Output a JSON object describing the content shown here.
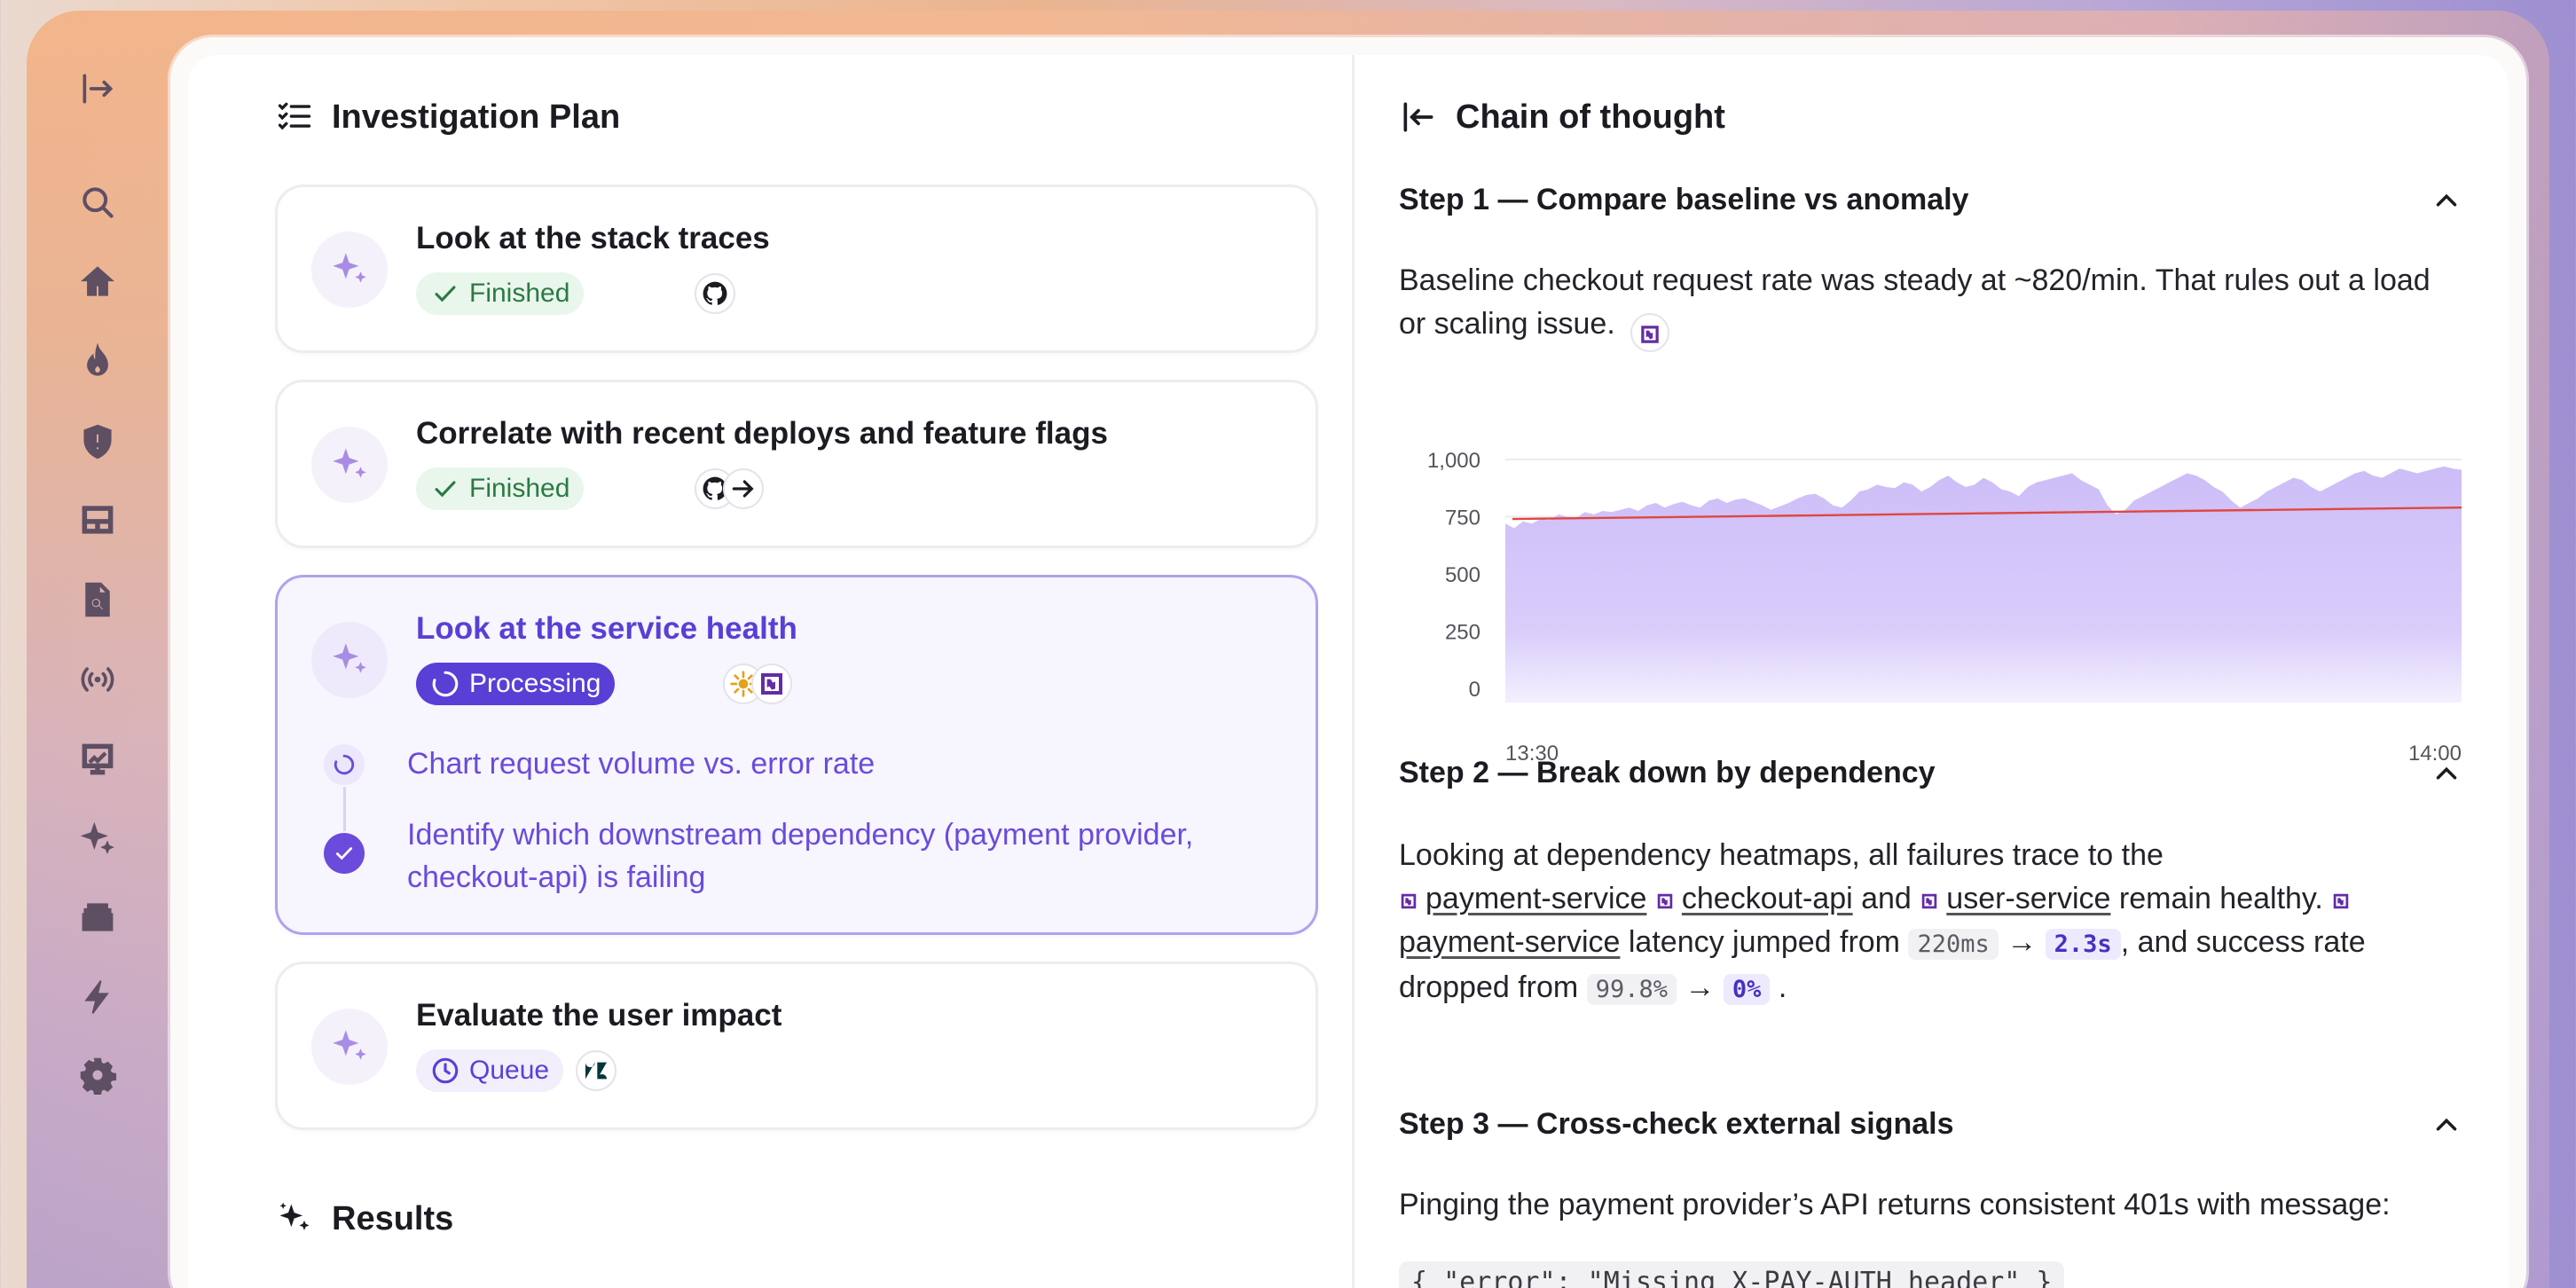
{
  "plan": {
    "title": "Investigation Plan",
    "tasks": [
      {
        "title": "Look at the stack traces",
        "status": "Finished"
      },
      {
        "title": "Correlate with recent deploys and feature flags",
        "status": "Finished"
      },
      {
        "title": "Look at the service health",
        "status": "Processing",
        "subtasks": [
          {
            "label": "Chart request volume vs. error rate",
            "state": "in-progress"
          },
          {
            "label": "Identify which downstream dependency (payment provider, checkout-api) is failing",
            "state": "done"
          }
        ]
      },
      {
        "title": "Evaluate the user impact",
        "status": "Queue"
      }
    ]
  },
  "results": {
    "title": "Results"
  },
  "cot": {
    "title": "Chain of thought",
    "step1": {
      "title": "Step 1 — Compare baseline vs anomaly",
      "text": "Baseline checkout request rate was steady at ~820/min. That rules out a load or scaling issue."
    },
    "step2": {
      "title": "Step 2 — Break down by dependency",
      "t1": "Looking at dependency heatmaps, all failures trace to the",
      "svc1": "payment-service",
      "svc2": "checkout-api",
      "and": "and",
      "svc3": "user-service",
      "remain": "remain healthy.",
      "svc4": "payment-service",
      "latency": "latency jumped from",
      "lat_from": "220ms",
      "arrow": "→",
      "lat_to": "2.3s",
      "and2": ", and success rate dropped from",
      "succ_from": "99.8%",
      "succ_to": "0%",
      "period": "."
    },
    "step3": {
      "title": "Step 3 — Cross-check external signals",
      "text": "Pinging the payment provider’s API returns consistent 401s with message:",
      "code": "{ \"error\": \"Missing X-PAY-AUTH header\" }"
    }
  },
  "chart_data": {
    "type": "area",
    "x_start": "13:30",
    "x_end": "14:00",
    "x_tick_labels": [
      "13:30",
      "14:00"
    ],
    "y_tick_labels": [
      "1,000",
      "750",
      "500",
      "250",
      "0"
    ],
    "ylim": [
      0,
      1000
    ],
    "series": [
      {
        "values": [
          720,
          700,
          730,
          720,
          740,
          735,
          760,
          750,
          745,
          770,
          760,
          775,
          770,
          780,
          790,
          775,
          800,
          810,
          790,
          805,
          815,
          800,
          790,
          820,
          830,
          810,
          825,
          830,
          815,
          800,
          780,
          795,
          810,
          830,
          845,
          850,
          830,
          800,
          790,
          820,
          860,
          870,
          890,
          880,
          875,
          900,
          890,
          860,
          880,
          910,
          930,
          900,
          880,
          890,
          920,
          900,
          870,
          860,
          840,
          880,
          900,
          910,
          920,
          930,
          940,
          910,
          890,
          870,
          800,
          760,
          780,
          820,
          840,
          860,
          880,
          900,
          920,
          940,
          930,
          910,
          880,
          860,
          820,
          790,
          810,
          830,
          860,
          880,
          900,
          920,
          910,
          880,
          860,
          880,
          900,
          920,
          940,
          950,
          930,
          920,
          940,
          960,
          950,
          940,
          950,
          960,
          970,
          960,
          955
        ]
      },
      {
        "values": [
          740,
          790
        ]
      }
    ]
  }
}
